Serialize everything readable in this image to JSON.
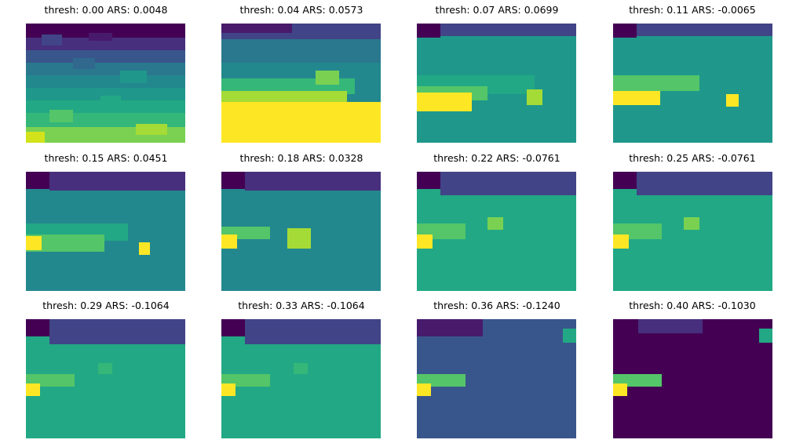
{
  "colors": {
    "v0": "#440154",
    "v1": "#481a6c",
    "v2": "#472f7d",
    "v3": "#414487",
    "v4": "#39568c",
    "v5": "#31688e",
    "v6": "#2a788e",
    "v7": "#23888e",
    "v8": "#1f988b",
    "v9": "#22a884",
    "v10": "#35b779",
    "v11": "#54c568",
    "v12": "#7ad151",
    "v13": "#a5db36",
    "v14": "#d2e21b",
    "v15": "#fde725"
  },
  "chart_data": [
    {
      "type": "heatmap",
      "colormap": "viridis",
      "axes_visible": false,
      "title": "thresh: 0.00 ARS: 0.0048",
      "thresh": 0.0,
      "ars": 0.0048
    },
    {
      "type": "heatmap",
      "colormap": "viridis",
      "axes_visible": false,
      "title": "thresh: 0.04 ARS: 0.0573",
      "thresh": 0.04,
      "ars": 0.0573
    },
    {
      "type": "heatmap",
      "colormap": "viridis",
      "axes_visible": false,
      "title": "thresh: 0.07 ARS: 0.0699",
      "thresh": 0.07,
      "ars": 0.0699
    },
    {
      "type": "heatmap",
      "colormap": "viridis",
      "axes_visible": false,
      "title": "thresh: 0.11 ARS: -0.0065",
      "thresh": 0.11,
      "ars": -0.0065
    },
    {
      "type": "heatmap",
      "colormap": "viridis",
      "axes_visible": false,
      "title": "thresh: 0.15 ARS: 0.0451",
      "thresh": 0.15,
      "ars": 0.0451
    },
    {
      "type": "heatmap",
      "colormap": "viridis",
      "axes_visible": false,
      "title": "thresh: 0.18 ARS: 0.0328",
      "thresh": 0.18,
      "ars": 0.0328
    },
    {
      "type": "heatmap",
      "colormap": "viridis",
      "axes_visible": false,
      "title": "thresh: 0.22 ARS: -0.0761",
      "thresh": 0.22,
      "ars": -0.0761
    },
    {
      "type": "heatmap",
      "colormap": "viridis",
      "axes_visible": false,
      "title": "thresh: 0.25 ARS: -0.0761",
      "thresh": 0.25,
      "ars": -0.0761
    },
    {
      "type": "heatmap",
      "colormap": "viridis",
      "axes_visible": false,
      "title": "thresh: 0.29 ARS: -0.1064",
      "thresh": 0.29,
      "ars": -0.1064
    },
    {
      "type": "heatmap",
      "colormap": "viridis",
      "axes_visible": false,
      "title": "thresh: 0.33 ARS: -0.1064",
      "thresh": 0.33,
      "ars": -0.1064
    },
    {
      "type": "heatmap",
      "colormap": "viridis",
      "axes_visible": false,
      "title": "thresh: 0.36 ARS: -0.1240",
      "thresh": 0.36,
      "ars": -0.124
    },
    {
      "type": "heatmap",
      "colormap": "viridis",
      "axes_visible": false,
      "title": "thresh: 0.40 ARS: -0.1030",
      "thresh": 0.4,
      "ars": -0.103
    }
  ]
}
